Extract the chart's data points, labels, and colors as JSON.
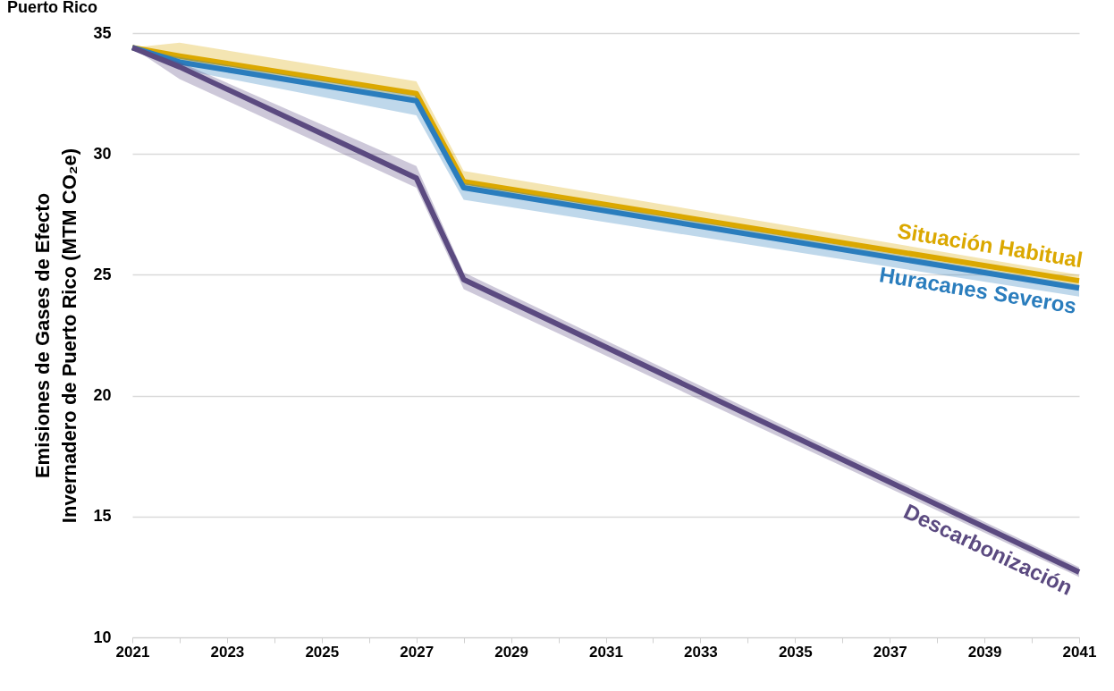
{
  "chart_data": {
    "type": "line",
    "title": "Puerto Rico",
    "ylabel": "Emisiones de Gases de Efecto\nInvernadero de Puerto Rico (MTM CO₂e)",
    "x": [
      2021,
      2022,
      2027,
      2028,
      2041
    ],
    "series": [
      {
        "name": "Situación Habitual",
        "color": "#dba800",
        "values": [
          34.4,
          34.05,
          32.5,
          28.85,
          24.75
        ],
        "lower": [
          34.4,
          33.8,
          32.2,
          28.6,
          24.5
        ],
        "upper": [
          34.4,
          34.6,
          33.0,
          29.3,
          25.0
        ]
      },
      {
        "name": "Huracanes Severos",
        "color": "#2a7dbd",
        "values": [
          34.4,
          33.8,
          32.2,
          28.6,
          24.45
        ],
        "lower": [
          34.4,
          33.5,
          31.6,
          28.1,
          24.1
        ],
        "upper": [
          34.4,
          34.0,
          32.4,
          28.8,
          24.6
        ]
      },
      {
        "name": "Descarbonización",
        "color": "#5b4a80",
        "values": [
          34.4,
          33.6,
          29.0,
          24.8,
          12.7
        ],
        "lower": [
          34.4,
          33.1,
          28.6,
          24.4,
          12.5
        ],
        "upper": [
          34.4,
          33.8,
          29.5,
          25.1,
          12.9
        ]
      }
    ],
    "xlim": [
      2021,
      2041
    ],
    "xticks": [
      2021,
      {
        "value": 2022,
        "label": null
      },
      2023,
      {
        "value": 2024,
        "label": null
      },
      2025,
      {
        "value": 2026,
        "label": null
      },
      2027,
      {
        "value": 2028,
        "label": null
      },
      2029,
      {
        "value": 2030,
        "label": null
      },
      2031,
      {
        "value": 2032,
        "label": null
      },
      2033,
      {
        "value": 2034,
        "label": null
      },
      2035,
      {
        "value": 2036,
        "label": null
      },
      2037,
      {
        "value": 2038,
        "label": null
      },
      2039,
      {
        "value": 2040,
        "label": null
      },
      2041
    ],
    "ylim": [
      10,
      35
    ],
    "yticks": [
      10,
      15,
      20,
      25,
      30,
      35
    ],
    "grid": "y",
    "line_style": "solid",
    "marker": "none"
  }
}
